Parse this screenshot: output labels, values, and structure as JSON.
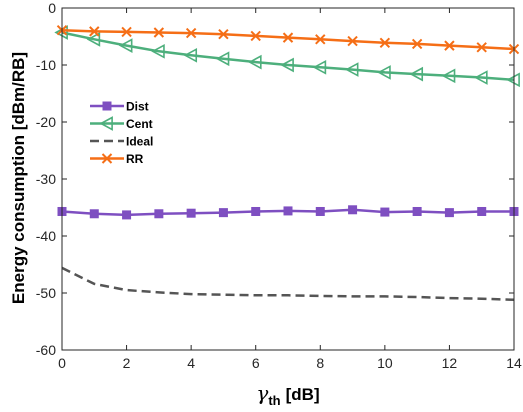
{
  "chart_data": {
    "type": "line",
    "xlabel_symbol": "γ",
    "xlabel_sub": "th",
    "xlabel_unit": "[dB]",
    "ylabel": "Energy consumption [dBm/RB]",
    "xlim": [
      0,
      14
    ],
    "ylim": [
      -60,
      0
    ],
    "xticks": [
      0,
      2,
      4,
      6,
      8,
      10,
      12,
      14
    ],
    "yticks": [
      0,
      -10,
      -20,
      -30,
      -40,
      -50,
      -60
    ],
    "grid": false,
    "legend_position": "left",
    "x": [
      0,
      1,
      2,
      3,
      4,
      5,
      6,
      7,
      8,
      9,
      10,
      11,
      12,
      13,
      14
    ],
    "series": [
      {
        "name": "Dist",
        "marker": "square",
        "color": "#7e4fc1",
        "values": [
          -35.7,
          -36.1,
          -36.3,
          -36.1,
          -36.0,
          -35.9,
          -35.7,
          -35.6,
          -35.7,
          -35.4,
          -35.8,
          -35.7,
          -35.9,
          -35.7,
          -35.7
        ]
      },
      {
        "name": "Cent",
        "marker": "triangle-left",
        "color": "#4daf7c",
        "values": [
          -4.3,
          -5.5,
          -6.6,
          -7.6,
          -8.3,
          -8.9,
          -9.5,
          -10.0,
          -10.4,
          -10.8,
          -11.3,
          -11.6,
          -11.9,
          -12.2,
          -12.6
        ]
      },
      {
        "name": "Ideal",
        "marker": "none",
        "color": "#555555",
        "dashed": true,
        "values": [
          -45.6,
          -48.4,
          -49.5,
          -49.9,
          -50.2,
          -50.3,
          -50.4,
          -50.4,
          -50.5,
          -50.6,
          -50.6,
          -50.7,
          -50.9,
          -51.0,
          -51.2
        ]
      },
      {
        "name": "RR",
        "marker": "x",
        "color": "#f56e16",
        "values": [
          -3.9,
          -4.1,
          -4.2,
          -4.3,
          -4.4,
          -4.6,
          -4.9,
          -5.2,
          -5.5,
          -5.8,
          -6.1,
          -6.3,
          -6.6,
          -6.9,
          -7.2
        ]
      }
    ]
  }
}
